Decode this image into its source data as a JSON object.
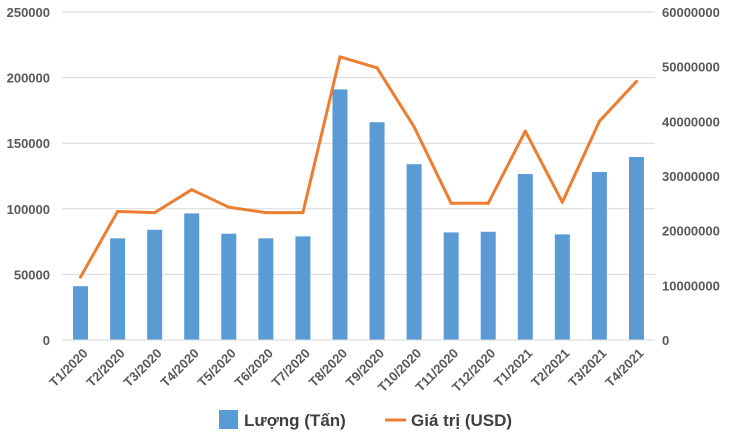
{
  "chart_data": {
    "type": "bar+line",
    "categories": [
      "T1/2020",
      "T2/2020",
      "T3/2020",
      "T4/2020",
      "T5/2020",
      "T6/2020",
      "T7/2020",
      "T8/2020",
      "T9/2020",
      "T10/2020",
      "T11/2020",
      "T12/2020",
      "T1/2021",
      "T2/2021",
      "T3/2021",
      "T4/2021"
    ],
    "series": [
      {
        "name": "Lượng (Tấn)",
        "type": "bar",
        "axis": "left",
        "color": "#5B9BD5",
        "values": [
          41000,
          77500,
          84000,
          96500,
          81000,
          77500,
          79000,
          191000,
          166000,
          134000,
          82000,
          82500,
          126500,
          80500,
          128000,
          139500
        ]
      },
      {
        "name": "Giá trị (USD)",
        "type": "line",
        "axis": "right",
        "color": "#ED7D31",
        "values": [
          11500000,
          23500000,
          23300000,
          27500000,
          24300000,
          23300000,
          23300000,
          51800000,
          49800000,
          39000000,
          25000000,
          25000000,
          38200000,
          25200000,
          40000000,
          47300000
        ]
      }
    ],
    "left_axis": {
      "min": 0,
      "max": 250000,
      "ticks": [
        "0",
        "50000",
        "100000",
        "150000",
        "200000",
        "250000"
      ]
    },
    "right_axis": {
      "min": 0,
      "max": 60000000,
      "ticks": [
        "0",
        "10000000",
        "20000000",
        "30000000",
        "40000000",
        "50000000",
        "60000000"
      ]
    },
    "grid": true,
    "legend_position": "bottom"
  }
}
